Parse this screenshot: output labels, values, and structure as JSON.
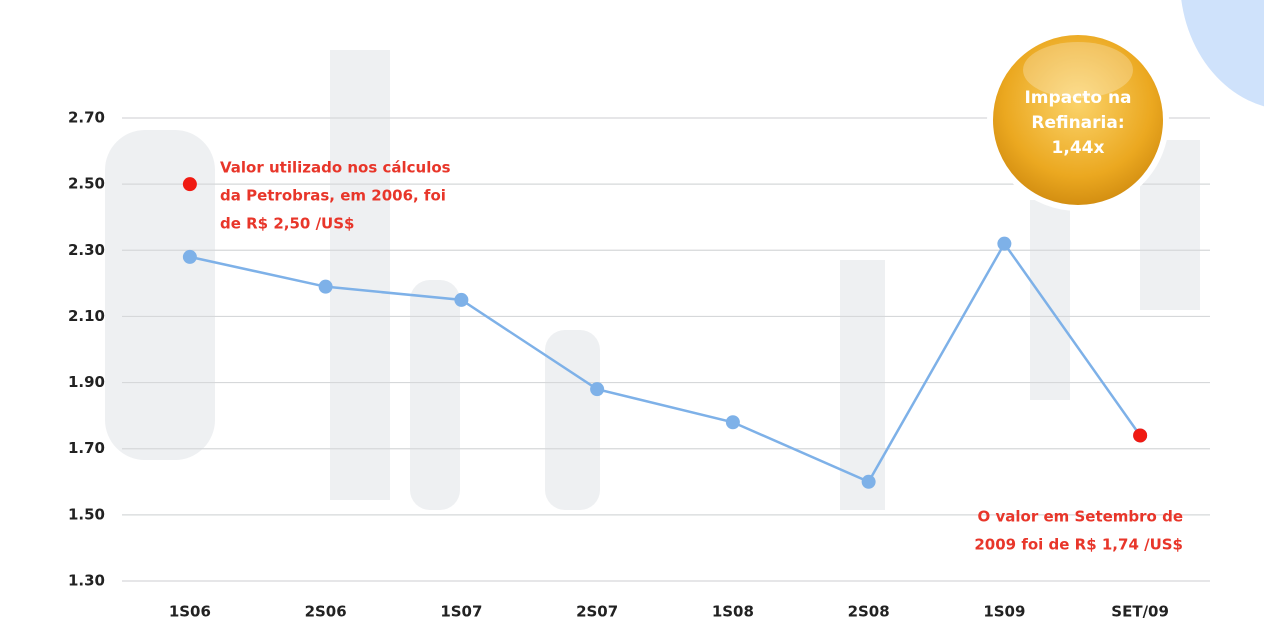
{
  "chart_data": {
    "type": "line",
    "categories": [
      "1S06",
      "2S06",
      "1S07",
      "2S07",
      "1S08",
      "2S08",
      "1S09",
      "SET/09"
    ],
    "series": [
      {
        "color": "#7eb1e8",
        "style": "line",
        "values": [
          2.28,
          2.19,
          2.15,
          1.88,
          1.78,
          1.6,
          2.32,
          1.74
        ]
      },
      {
        "color": "#f01a12",
        "style": "markers",
        "values": [
          2.5,
          null,
          null,
          null,
          null,
          null,
          null,
          1.74
        ]
      }
    ],
    "ylim": [
      1.3,
      2.7
    ],
    "yticks": [
      {
        "value": 1.3,
        "label": "1.30"
      },
      {
        "value": 1.5,
        "label": "1.50"
      },
      {
        "value": 1.7,
        "label": "1.70"
      },
      {
        "value": 1.9,
        "label": "1.90"
      },
      {
        "value": 2.1,
        "label": "2.10"
      },
      {
        "value": 2.3,
        "label": "2.30"
      },
      {
        "value": 2.5,
        "label": "2.50"
      },
      {
        "value": 2.7,
        "label": "2.70"
      }
    ],
    "grid": true,
    "annotations": [
      [
        "Valor utilizado nos cálculos",
        "da Petrobras, em 2006, foi",
        "de R$ 2,50 /US$"
      ],
      [
        "O valor em Setembro de",
        "2009 foi de R$ 1,74 /US$"
      ]
    ],
    "badge": [
      "Impacto na",
      "Refinaria:",
      "1,44x"
    ]
  }
}
